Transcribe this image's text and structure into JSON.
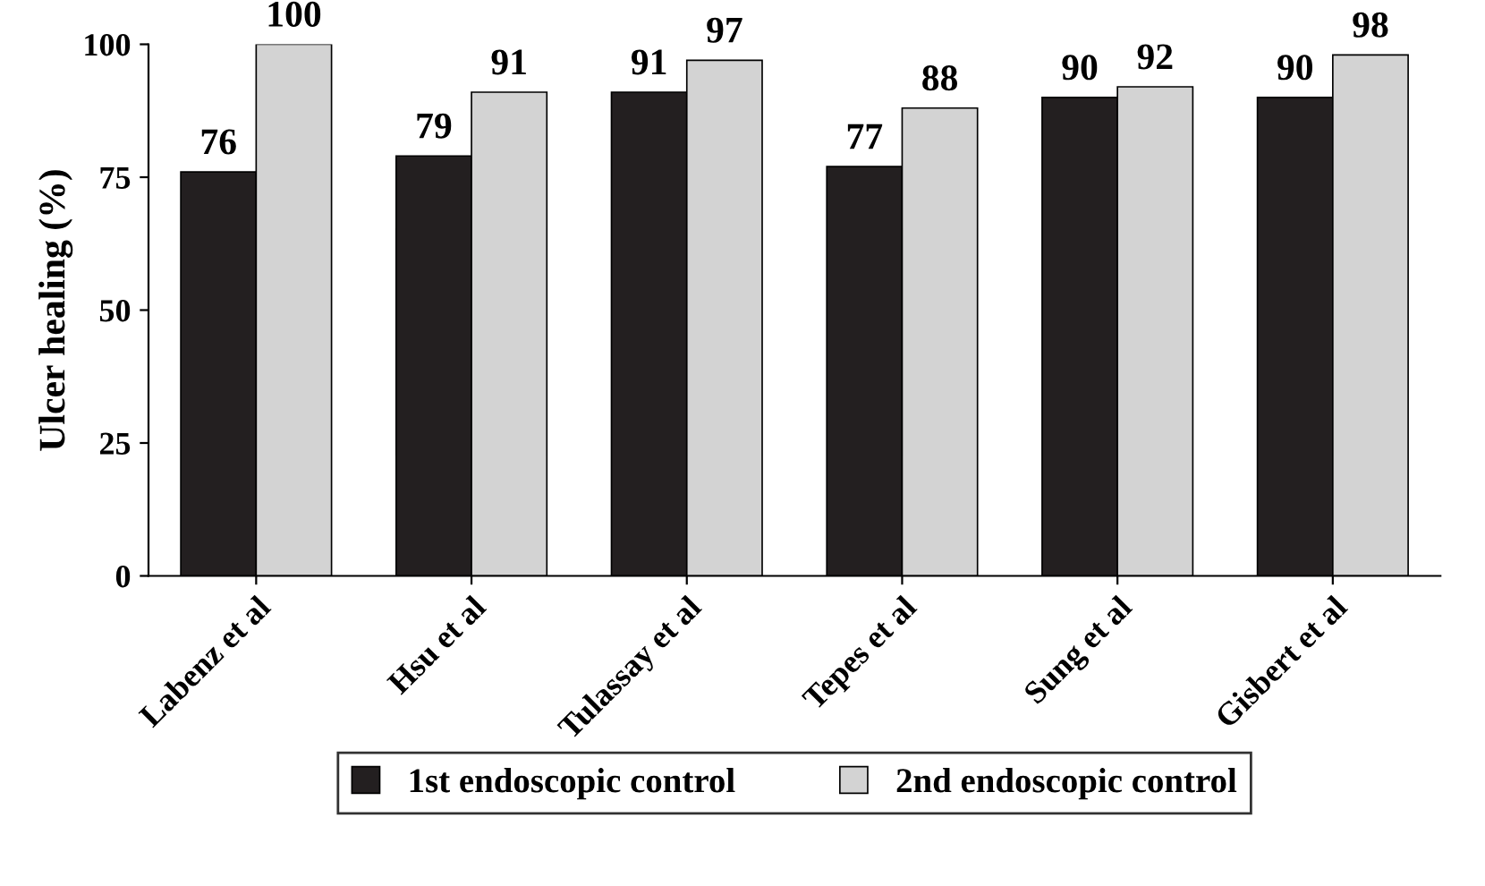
{
  "chart_data": {
    "type": "bar",
    "ylabel": "Ulcer healing (%)",
    "categories": [
      "Labenz et al",
      "Hsu et al",
      "Tulassay et al",
      "Tepes et al",
      "Sung et al",
      "Gisbert et al"
    ],
    "series": [
      {
        "name": "1st endoscopic control",
        "color": "#231f20",
        "values": [
          76,
          79,
          91,
          77,
          90,
          90
        ]
      },
      {
        "name": "2nd endoscopic control",
        "color": "#d3d3d3",
        "values": [
          100,
          91,
          97,
          88,
          92,
          98
        ]
      }
    ],
    "ylim": [
      0,
      100
    ],
    "yticks": [
      0,
      25,
      50,
      75,
      100
    ],
    "grid": false,
    "legend": "bottom",
    "data_labels": true
  }
}
